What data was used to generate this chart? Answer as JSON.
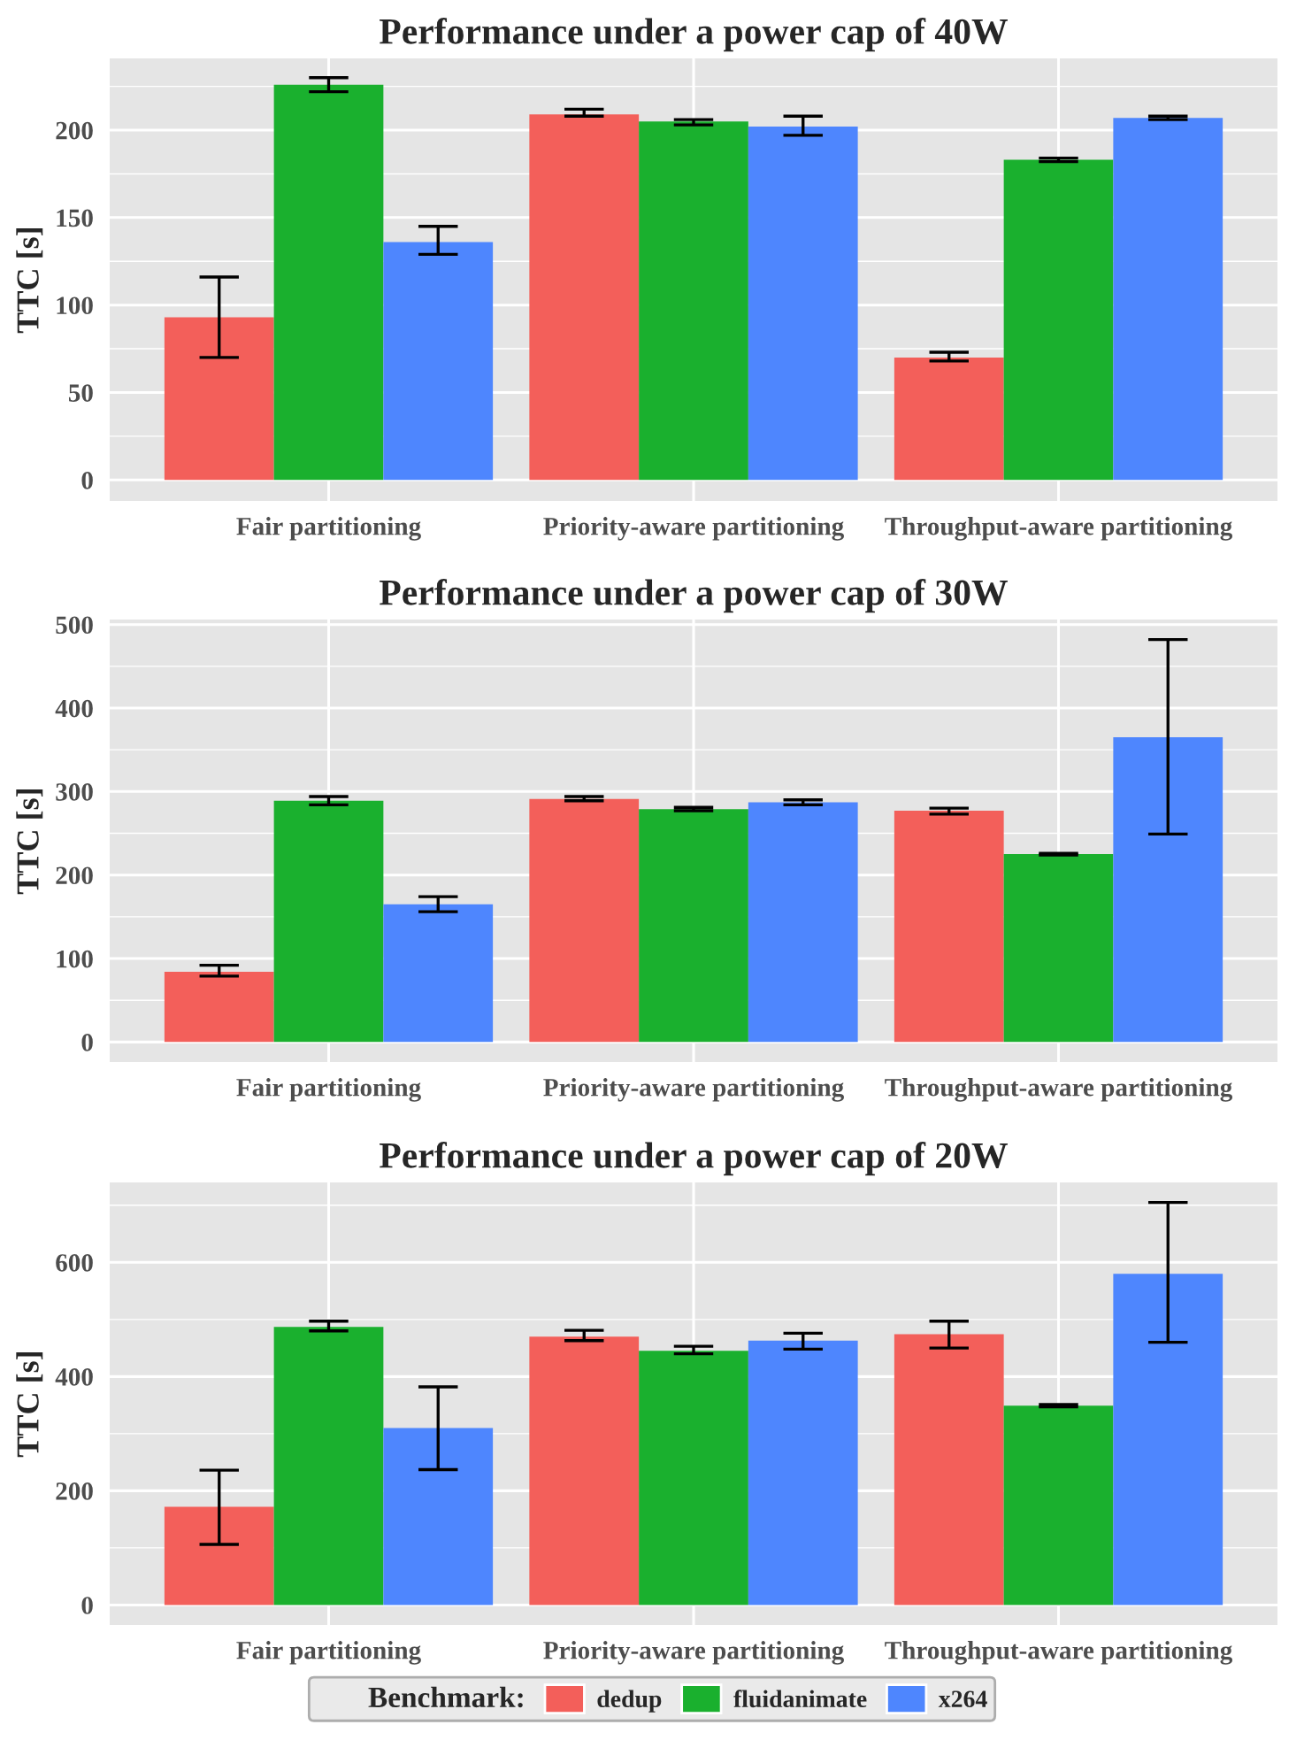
{
  "chart_data": [
    {
      "type": "bar",
      "title": "Performance under a power cap of 40W",
      "ylabel": "TTC [s]",
      "categories": [
        "Fair partitioning",
        "Priority-aware partitioning",
        "Throughput-aware partitioning"
      ],
      "ylim": [
        -12,
        241
      ],
      "yticks": [
        0,
        50,
        100,
        150,
        200
      ],
      "grid": true,
      "series": [
        {
          "color": "#f35f5a",
          "values": [
            93,
            209,
            70
          ],
          "errors": [
            [
              70,
              116
            ],
            [
              208,
              212
            ],
            [
              68,
              73
            ]
          ]
        },
        {
          "color": "#1ab02e",
          "values": [
            226,
            205,
            183
          ],
          "errors": [
            [
              222,
              230
            ],
            [
              203,
              206
            ],
            [
              182,
              184
            ]
          ]
        },
        {
          "color": "#4e86fe",
          "values": [
            136,
            202,
            207
          ],
          "errors": [
            [
              129,
              145
            ],
            [
              197,
              208
            ],
            [
              206,
              208
            ]
          ]
        }
      ]
    },
    {
      "type": "bar",
      "title": "Performance under a power cap of 30W",
      "ylabel": "TTC [s]",
      "categories": [
        "Fair partitioning",
        "Priority-aware partitioning",
        "Throughput-aware partitioning"
      ],
      "ylim": [
        -24,
        506
      ],
      "yticks": [
        0,
        100,
        200,
        300,
        400,
        500
      ],
      "grid": true,
      "series": [
        {
          "color": "#f35f5a",
          "values": [
            84,
            291,
            277
          ],
          "errors": [
            [
              79,
              92
            ],
            [
              289,
              294
            ],
            [
              273,
              280
            ]
          ]
        },
        {
          "color": "#1ab02e",
          "values": [
            289,
            279,
            225
          ],
          "errors": [
            [
              284,
              294
            ],
            [
              277,
              281
            ],
            [
              224,
              226
            ]
          ]
        },
        {
          "color": "#4e86fe",
          "values": [
            165,
            287,
            365
          ],
          "errors": [
            [
              156,
              174
            ],
            [
              284,
              290
            ],
            [
              249,
              482
            ]
          ]
        }
      ]
    },
    {
      "type": "bar",
      "title": "Performance under a power cap of 20W",
      "ylabel": "TTC [s]",
      "categories": [
        "Fair partitioning",
        "Priority-aware partitioning",
        "Throughput-aware partitioning"
      ],
      "ylim": [
        -35,
        740
      ],
      "yticks": [
        0,
        200,
        400,
        600
      ],
      "grid": true,
      "legend": "bottom",
      "legend_title": "Benchmark:",
      "series": [
        {
          "name": "dedup",
          "color": "#f35f5a",
          "values": [
            172,
            470,
            474
          ],
          "errors": [
            [
              106,
              236
            ],
            [
              463,
              481
            ],
            [
              450,
              497
            ]
          ]
        },
        {
          "name": "fluidanimate",
          "color": "#1ab02e",
          "values": [
            487,
            445,
            349
          ],
          "errors": [
            [
              480,
              497
            ],
            [
              440,
              453
            ],
            [
              347,
              351
            ]
          ]
        },
        {
          "name": "x264",
          "color": "#4e86fe",
          "values": [
            310,
            463,
            580
          ],
          "errors": [
            [
              237,
              382
            ],
            [
              448,
              476
            ],
            [
              460,
              705
            ]
          ]
        }
      ]
    }
  ]
}
